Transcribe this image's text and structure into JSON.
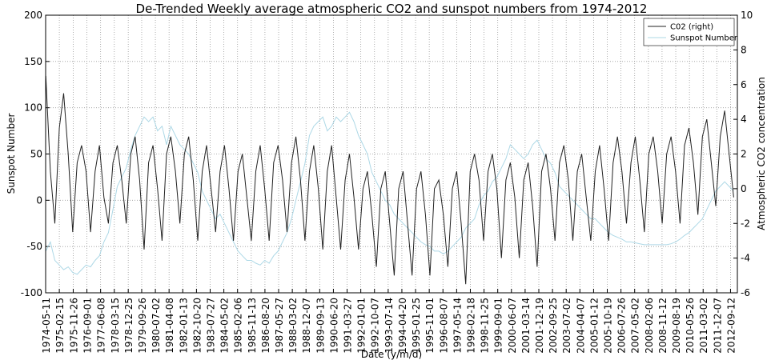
{
  "chart_data": {
    "type": "line",
    "title": "De-Trended Weekly average atmospheric CO2 and sunspot numbers from 1974-2012",
    "xlabel": "Date (y/m/d)",
    "ylabel": "Sunspot Number",
    "y2label": "Atmospheric CO2 concentration",
    "legend": "upper right",
    "grid": true,
    "xlim": [
      "1974-05-11",
      "2013-01-30"
    ],
    "xticks": [
      "1974-05-11",
      "1975-02-15",
      "1975-11-26",
      "1976-09-01",
      "1977-06-08",
      "1978-03-15",
      "1978-12-25",
      "1979-09-26",
      "1980-07-02",
      "1981-04-08",
      "1982-01-13",
      "1982-10-20",
      "1983-07-27",
      "1984-05-02",
      "1985-02-06",
      "1985-11-13",
      "1986-08-20",
      "1987-05-27",
      "1988-03-02",
      "1988-12-07",
      "1989-09-13",
      "1990-06-20",
      "1991-03-27",
      "1992-01-01",
      "1992-10-07",
      "1993-07-14",
      "1994-04-20",
      "1995-01-25",
      "1995-11-01",
      "1996-08-07",
      "1997-05-14",
      "1998-02-18",
      "1998-11-25",
      "1999-09-01",
      "2000-06-07",
      "2001-03-14",
      "2001-12-19",
      "2002-09-25",
      "2003-07-02",
      "2004-04-07",
      "2005-01-12",
      "2005-10-19",
      "2006-07-26",
      "2007-05-02",
      "2008-02-06",
      "2008-11-12",
      "2009-08-19",
      "2010-05-26",
      "2011-03-02",
      "2011-12-07",
      "2012-09-12"
    ],
    "ylim": [
      -100,
      200
    ],
    "yticks": [
      -100,
      -50,
      0,
      50,
      100,
      150,
      200
    ],
    "y2lim": [
      -6,
      10
    ],
    "y2ticks": [
      -6,
      -4,
      -2,
      0,
      2,
      4,
      6,
      8,
      10
    ],
    "x": [
      "1974-05-15",
      "1974-08-15",
      "1974-11-15",
      "1975-02-15",
      "1975-05-15",
      "1975-08-15",
      "1975-11-15",
      "1976-02-15",
      "1976-05-15",
      "1976-08-15",
      "1976-11-15",
      "1977-02-15",
      "1977-05-15",
      "1977-08-15",
      "1977-11-15",
      "1978-02-15",
      "1978-05-15",
      "1978-08-15",
      "1978-11-15",
      "1979-02-15",
      "1979-05-15",
      "1979-08-15",
      "1979-11-15",
      "1980-02-15",
      "1980-05-15",
      "1980-08-15",
      "1980-11-15",
      "1981-02-15",
      "1981-05-15",
      "1981-08-15",
      "1981-11-15",
      "1982-02-15",
      "1982-05-15",
      "1982-08-15",
      "1982-11-15",
      "1983-02-15",
      "1983-05-15",
      "1983-08-15",
      "1983-11-15",
      "1984-02-15",
      "1984-05-15",
      "1984-08-15",
      "1984-11-15",
      "1985-02-15",
      "1985-05-15",
      "1985-08-15",
      "1985-11-15",
      "1986-02-15",
      "1986-05-15",
      "1986-08-15",
      "1986-11-15",
      "1987-02-15",
      "1987-05-15",
      "1987-08-15",
      "1987-11-15",
      "1988-02-15",
      "1988-05-15",
      "1988-08-15",
      "1988-11-15",
      "1989-02-15",
      "1989-05-15",
      "1989-08-15",
      "1989-11-15",
      "1990-02-15",
      "1990-05-15",
      "1990-08-15",
      "1990-11-15",
      "1991-02-15",
      "1991-05-15",
      "1991-08-15",
      "1991-11-15",
      "1992-02-15",
      "1992-05-15",
      "1992-08-15",
      "1992-11-15",
      "1993-02-15",
      "1993-05-15",
      "1993-08-15",
      "1993-11-15",
      "1994-02-15",
      "1994-05-15",
      "1994-08-15",
      "1994-11-15",
      "1995-02-15",
      "1995-05-15",
      "1995-08-15",
      "1995-11-15",
      "1996-02-15",
      "1996-05-15",
      "1996-08-15",
      "1996-11-15",
      "1997-02-15",
      "1997-05-15",
      "1997-08-15",
      "1997-11-15",
      "1998-02-15",
      "1998-05-15",
      "1998-08-15",
      "1998-11-15",
      "1999-02-15",
      "1999-05-15",
      "1999-08-15",
      "1999-11-15",
      "2000-02-15",
      "2000-05-15",
      "2000-08-15",
      "2000-11-15",
      "2001-02-15",
      "2001-05-15",
      "2001-08-15",
      "2001-11-15",
      "2002-02-15",
      "2002-05-15",
      "2002-08-15",
      "2002-11-15",
      "2003-02-15",
      "2003-05-15",
      "2003-08-15",
      "2003-11-15",
      "2004-02-15",
      "2004-05-15",
      "2004-08-15",
      "2004-11-15",
      "2005-02-15",
      "2005-05-15",
      "2005-08-15",
      "2005-11-15",
      "2006-02-15",
      "2006-05-15",
      "2006-08-15",
      "2006-11-15",
      "2007-02-15",
      "2007-05-15",
      "2007-08-15",
      "2007-11-15",
      "2008-02-15",
      "2008-05-15",
      "2008-08-15",
      "2008-11-15",
      "2009-02-15",
      "2009-05-15",
      "2009-08-15",
      "2009-11-15",
      "2010-02-15",
      "2010-05-15",
      "2010-08-15",
      "2010-11-15",
      "2011-02-15",
      "2011-05-15",
      "2011-08-15",
      "2011-11-15",
      "2012-02-15",
      "2012-05-15",
      "2012-08-15",
      "2012-11-15"
    ],
    "series": [
      {
        "name": "Sunspot Number",
        "color": "#add8e6",
        "axis": "y",
        "values": [
          -55,
          -45,
          -65,
          -70,
          -75,
          -72,
          -78,
          -80,
          -75,
          -70,
          -72,
          -65,
          -60,
          -45,
          -35,
          -10,
          15,
          25,
          35,
          55,
          70,
          80,
          90,
          85,
          90,
          75,
          80,
          60,
          80,
          70,
          60,
          55,
          50,
          40,
          30,
          10,
          0,
          -10,
          -20,
          -15,
          -25,
          -35,
          -45,
          -55,
          -60,
          -65,
          -65,
          -68,
          -70,
          -65,
          -68,
          -60,
          -55,
          -45,
          -35,
          -20,
          0,
          20,
          40,
          70,
          80,
          85,
          90,
          75,
          80,
          90,
          85,
          90,
          95,
          85,
          70,
          60,
          50,
          30,
          20,
          10,
          0,
          -5,
          -15,
          -20,
          -25,
          -30,
          -35,
          -40,
          -45,
          -48,
          -50,
          -55,
          -55,
          -58,
          -55,
          -50,
          -45,
          -40,
          -30,
          -25,
          -20,
          -5,
          5,
          10,
          20,
          25,
          35,
          45,
          60,
          55,
          50,
          45,
          50,
          60,
          65,
          55,
          45,
          40,
          30,
          15,
          10,
          5,
          0,
          -5,
          -10,
          -15,
          -20,
          -20,
          -25,
          -30,
          -35,
          -38,
          -40,
          -42,
          -45,
          -45,
          -46,
          -47,
          -48,
          -48,
          -48,
          -48,
          -48,
          -48,
          -47,
          -45,
          -42,
          -38,
          -35,
          -30,
          -25,
          -20,
          -10,
          0,
          10,
          15,
          20,
          15,
          10
        ]
      },
      {
        "name": "C02 (right)",
        "color": "#222222",
        "axis": "y2",
        "values": [
          6.5,
          1.0,
          -2.0,
          3.5,
          5.5,
          2.0,
          -2.5,
          1.5,
          2.5,
          1.0,
          -2.5,
          1.0,
          2.5,
          -0.5,
          -2.0,
          1.5,
          2.5,
          0.5,
          -2.0,
          2.0,
          3.0,
          0.5,
          -3.5,
          1.5,
          2.5,
          0.0,
          -3.0,
          2.0,
          3.0,
          1.0,
          -2.0,
          2.0,
          3.0,
          0.5,
          -3.0,
          1.0,
          2.5,
          0.0,
          -2.5,
          1.0,
          2.5,
          0.0,
          -3.0,
          1.0,
          2.0,
          -0.5,
          -3.0,
          1.0,
          2.5,
          0.0,
          -3.0,
          1.5,
          2.5,
          0.5,
          -2.5,
          1.5,
          3.0,
          0.5,
          -3.0,
          1.0,
          2.5,
          0.0,
          -3.5,
          1.0,
          2.5,
          -0.5,
          -3.5,
          0.5,
          2.0,
          -0.5,
          -3.5,
          0.0,
          1.0,
          -1.5,
          -4.5,
          0.0,
          1.0,
          -2.0,
          -5.0,
          0.0,
          1.0,
          -2.0,
          -5.0,
          0.0,
          1.0,
          -1.5,
          -5.0,
          0.0,
          0.5,
          -1.5,
          -4.5,
          0.0,
          1.0,
          -2.0,
          -5.5,
          1.0,
          2.0,
          0.5,
          -3.0,
          1.0,
          2.0,
          0.0,
          -4.0,
          0.5,
          1.5,
          -0.5,
          -4.0,
          0.5,
          1.5,
          -1.0,
          -4.5,
          1.0,
          2.0,
          0.0,
          -3.0,
          1.5,
          2.5,
          0.5,
          -3.0,
          1.0,
          2.0,
          -0.5,
          -3.0,
          1.0,
          2.5,
          0.0,
          -3.0,
          1.5,
          3.0,
          1.0,
          -2.0,
          1.5,
          3.0,
          0.5,
          -2.5,
          2.0,
          3.0,
          1.0,
          -2.0,
          2.0,
          3.0,
          1.0,
          -2.0,
          2.5,
          3.5,
          1.5,
          -1.5,
          3.0,
          4.0,
          1.5,
          -1.0,
          3.0,
          4.5,
          2.0,
          -0.5
        ]
      }
    ]
  }
}
